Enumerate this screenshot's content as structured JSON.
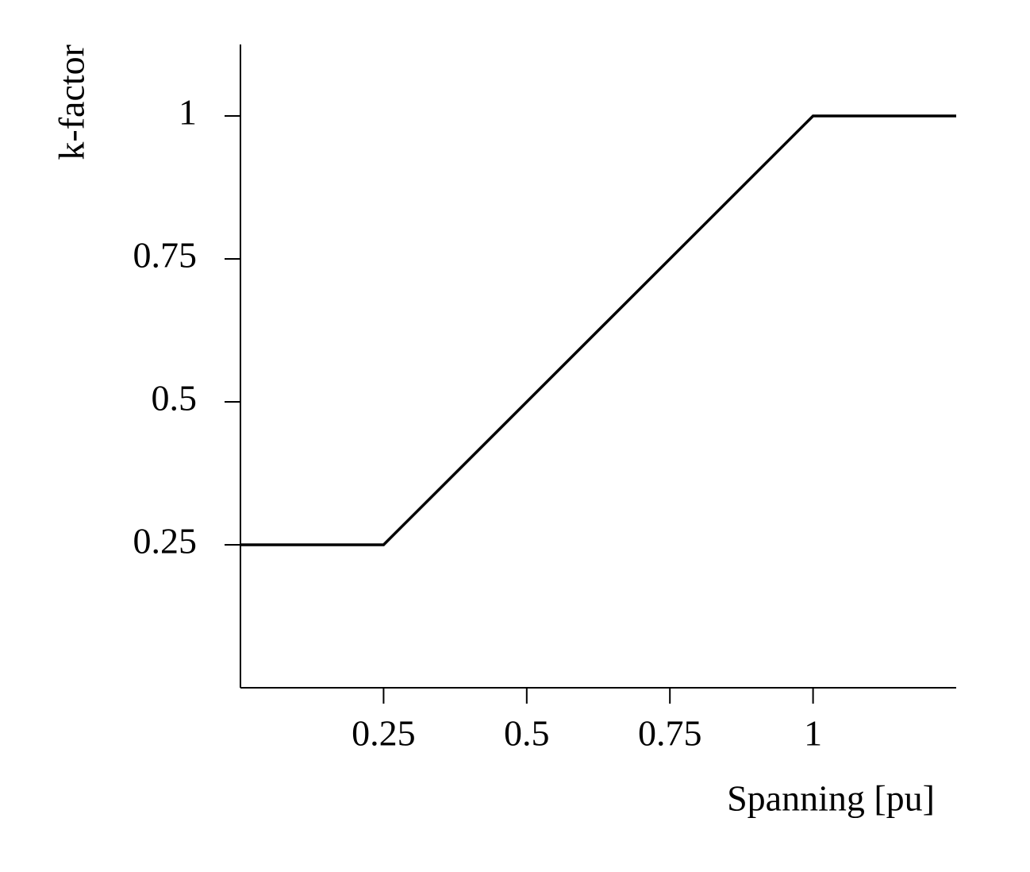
{
  "chart_data": {
    "type": "line",
    "xlabel": "Spanning [pu]",
    "ylabel": "k-factor",
    "x": [
      0,
      0.25,
      1,
      1.25
    ],
    "series": [
      {
        "values": [
          0.25,
          0.25,
          1,
          1
        ],
        "color": "#000000"
      }
    ],
    "xlim": [
      0,
      1.25
    ],
    "ylim": [
      0,
      1.125
    ],
    "xticks": [
      0.25,
      0.5,
      0.75,
      1
    ],
    "yticks": [
      0.25,
      0.5,
      0.75,
      1
    ]
  }
}
